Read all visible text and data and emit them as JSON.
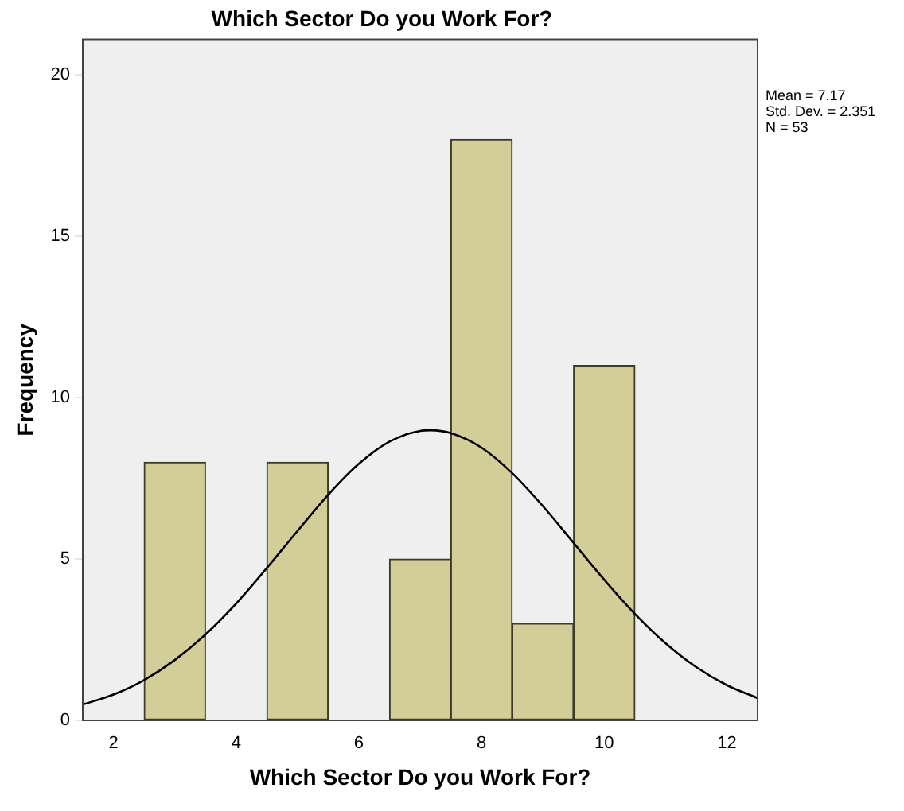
{
  "chart_data": {
    "type": "histogram",
    "title": "Which Sector Do you Work For?",
    "xlabel": "Which Sector Do you Work For?",
    "ylabel": "Frequency",
    "bins": [
      2.5,
      3.5,
      4.5,
      5.5,
      6.5,
      7.5,
      8.5,
      9.5,
      10.5
    ],
    "series": [
      {
        "color": "#d3ce98",
        "values": [
          8,
          0,
          8,
          0,
          5,
          18,
          3,
          11
        ]
      },
      {
        "type": "line",
        "color": "#000000",
        "x": [
          1.5,
          2,
          2.5,
          3,
          3.5,
          4,
          4.5,
          5,
          5.5,
          6,
          6.5,
          7,
          7.17,
          7.5,
          8,
          8.5,
          9,
          9.5,
          10,
          10.5,
          11,
          11.5,
          12,
          12.5
        ],
        "values": [
          0.49,
          0.8,
          1.25,
          1.87,
          2.66,
          3.62,
          4.72,
          5.87,
          6.99,
          7.95,
          8.64,
          8.97,
          8.99,
          8.9,
          8.45,
          7.66,
          6.64,
          5.5,
          4.36,
          3.3,
          2.39,
          1.65,
          1.09,
          0.69
        ]
      }
    ],
    "xlim": [
      1.5,
      12.5
    ],
    "xticks": [
      2,
      4,
      6,
      8,
      10,
      12
    ],
    "ylim": [
      0,
      21.1
    ],
    "yticks": [
      0,
      5,
      10,
      15,
      20
    ],
    "grid": false,
    "legend": false,
    "marker": "none",
    "annotations": [
      "Mean = 7.17",
      "Std. Dev. = 2.351",
      "N = 53"
    ]
  }
}
